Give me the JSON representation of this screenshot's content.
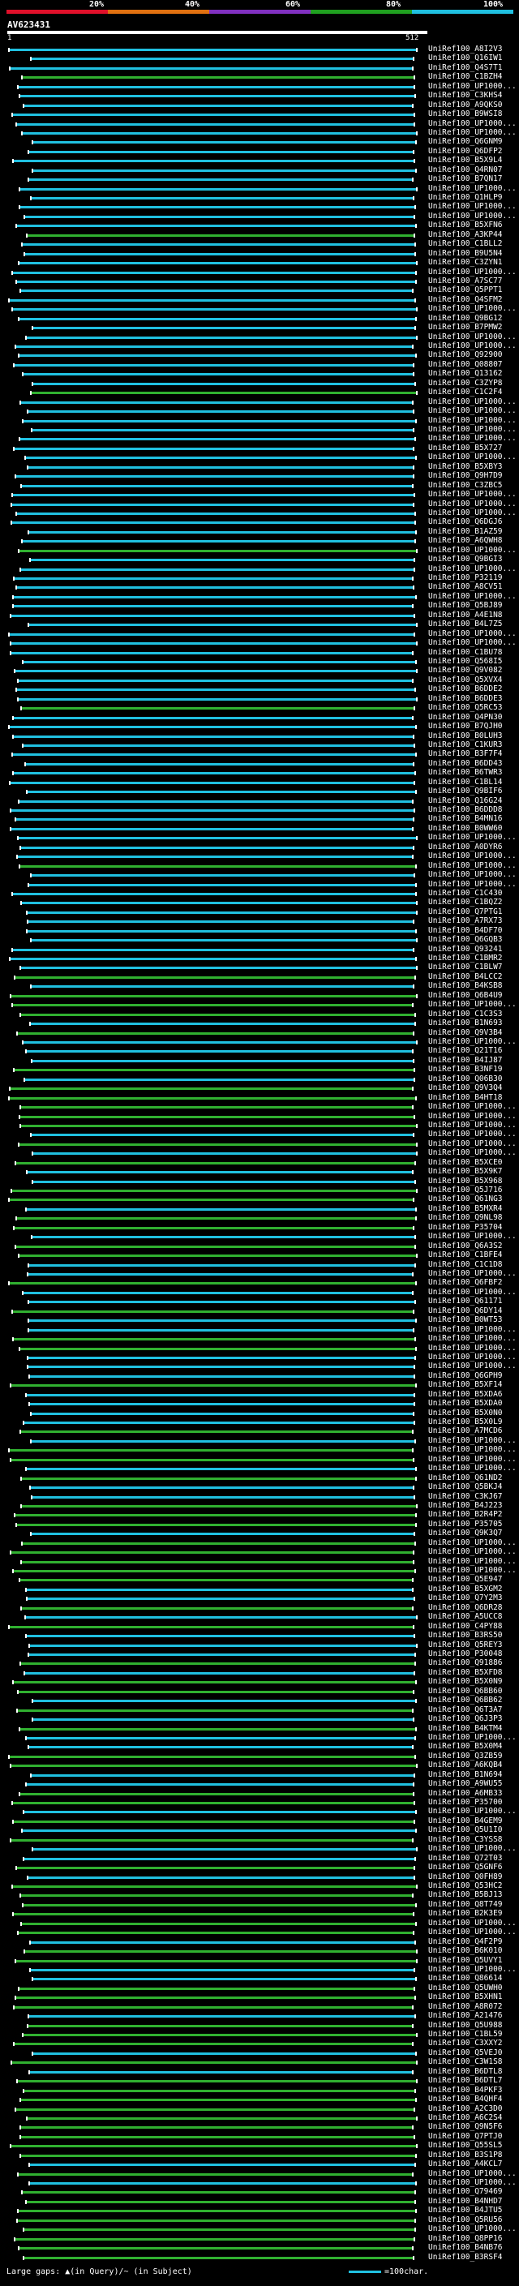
{
  "scale": {
    "labels": [
      "20%",
      "40%",
      "60%",
      "80%",
      "100%"
    ],
    "colors": [
      "#e0102a",
      "#e07010",
      "#8030c0",
      "#20a020",
      "#20c0e0"
    ]
  },
  "query": {
    "id": "AV623431",
    "start": "1",
    "end": "512"
  },
  "colors": {
    "identity_high": "#20c0e0",
    "identity_mid": "#30b030",
    "background": "#000000"
  },
  "hits": [
    "UniRef100_A8I2V3",
    "UniRef100_Q16IW1",
    "UniRef100_Q4S7T1",
    "UniRef100_C1BZH4",
    "UniRef100_UP1000...",
    "UniRef100_C3KHS4",
    "UniRef100_A9QKS0",
    "UniRef100_B9WSI8",
    "UniRef100_UP1000...",
    "UniRef100_UP1000...",
    "UniRef100_Q6GNM9",
    "UniRef100_Q6DFP2",
    "UniRef100_B5X9L4",
    "UniRef100_Q4RN07",
    "UniRef100_B7QN17",
    "UniRef100_UP1000...",
    "UniRef100_Q1HLP9",
    "UniRef100_UP1000...",
    "UniRef100_UP1000...",
    "UniRef100_B5XFN6",
    "UniRef100_A3KP44",
    "UniRef100_C1BLL2",
    "UniRef100_B9U5N4",
    "UniRef100_C3ZYN1",
    "UniRef100_UP1000...",
    "UniRef100_A7SC77",
    "UniRef100_Q5PPT1",
    "UniRef100_Q4SFM2",
    "UniRef100_UP1000...",
    "UniRef100_Q9BG12",
    "UniRef100_B7PMW2",
    "UniRef100_UP1000...",
    "UniRef100_UP1000...",
    "UniRef100_Q92900",
    "UniRef100_Q08807",
    "UniRef100_Q13162",
    "UniRef100_C3ZYP8",
    "UniRef100_C1C2F4",
    "UniRef100_UP1000...",
    "UniRef100_UP1000...",
    "UniRef100_UP1000...",
    "UniRef100_UP1000...",
    "UniRef100_UP1000...",
    "UniRef100_B5X727",
    "UniRef100_UP1000...",
    "UniRef100_B5XBY3",
    "UniRef100_Q9H7D9",
    "UniRef100_C3ZBC5",
    "UniRef100_UP1000...",
    "UniRef100_UP1000...",
    "UniRef100_UP1000...",
    "UniRef100_Q6DGJ6",
    "UniRef100_B1AZ59",
    "UniRef100_A6QWH8",
    "UniRef100_UP1000...",
    "UniRef100_Q9BGI3",
    "UniRef100_UP1000...",
    "UniRef100_P32119",
    "UniRef100_A8CV51",
    "UniRef100_UP1000...",
    "UniRef100_Q5BJ89",
    "UniRef100_A4E1N8",
    "UniRef100_B4L7Z5",
    "UniRef100_UP1000...",
    "UniRef100_UP1000...",
    "UniRef100_C1BU78",
    "UniRef100_Q568I5",
    "UniRef100_Q9V082",
    "UniRef100_Q5XVX4",
    "UniRef100_B6DDE2",
    "UniRef100_B6DDE3",
    "UniRef100_Q5RC53",
    "UniRef100_Q4PN30",
    "UniRef100_B7QJH0",
    "UniRef100_B0LUH3",
    "UniRef100_C1KUR3",
    "UniRef100_B3F7F4",
    "UniRef100_B6DD43",
    "UniRef100_B6TWR3",
    "UniRef100_C1BL14",
    "UniRef100_Q9BIF6",
    "UniRef100_Q16G24",
    "UniRef100_B6DDD8",
    "UniRef100_B4MN16",
    "UniRef100_B0WW60",
    "UniRef100_UP1000...",
    "UniRef100_A0DYR6",
    "UniRef100_UP1000...",
    "UniRef100_UP1000...",
    "UniRef100_UP1000...",
    "UniRef100_UP1000...",
    "UniRef100_C1C430",
    "UniRef100_C1BQZ2",
    "UniRef100_Q7PTG1",
    "UniRef100_A7RX73",
    "UniRef100_B4DF70",
    "UniRef100_Q6GQB3",
    "UniRef100_Q93241",
    "UniRef100_C1BMR2",
    "UniRef100_C1BLW7",
    "UniRef100_B4LCC2",
    "UniRef100_B4KSB8",
    "UniRef100_Q6B4U9",
    "UniRef100_UP1000...",
    "UniRef100_C1C3S3",
    "UniRef100_B1N693",
    "UniRef100_Q9V3B4",
    "UniRef100_UP1000...",
    "UniRef100_Q21T16",
    "UniRef100_B4IJ87",
    "UniRef100_B3NF19",
    "UniRef100_Q06B30",
    "UniRef100_Q9V3Q4",
    "UniRef100_B4HT18",
    "UniRef100_UP1000...",
    "UniRef100_UP1000...",
    "UniRef100_UP1000...",
    "UniRef100_UP1000...",
    "UniRef100_UP1000...",
    "UniRef100_UP1000...",
    "UniRef100_B5XCE0",
    "UniRef100_B5X9K7",
    "UniRef100_B5X968",
    "UniRef100_Q5J716",
    "UniRef100_Q61NG3",
    "UniRef100_B5MXR4",
    "UniRef100_Q9NL98",
    "UniRef100_P35704",
    "UniRef100_UP1000...",
    "UniRef100_Q6A3S2",
    "UniRef100_C1BFE4",
    "UniRef100_C1C1D8",
    "UniRef100_UP1000...",
    "UniRef100_Q6FBF2",
    "UniRef100_UP1000...",
    "UniRef100_Q61171",
    "UniRef100_Q6DY14",
    "UniRef100_B0WT53",
    "UniRef100_UP1000...",
    "UniRef100_UP1000...",
    "UniRef100_UP1000...",
    "UniRef100_UP1000...",
    "UniRef100_UP1000...",
    "UniRef100_Q6GPH9",
    "UniRef100_B5XF14",
    "UniRef100_B5XDA6",
    "UniRef100_B5XDA0",
    "UniRef100_B5X0N0",
    "UniRef100_B5X0L9",
    "UniRef100_A7MCD6",
    "UniRef100_UP1000...",
    "UniRef100_UP1000...",
    "UniRef100_UP1000...",
    "UniRef100_UP1000...",
    "UniRef100_Q61ND2",
    "UniRef100_Q5BKJ4",
    "UniRef100_C3KJ67",
    "UniRef100_B4J223",
    "UniRef100_B2R4P2",
    "UniRef100_P35705",
    "UniRef100_Q9K3Q7",
    "UniRef100_UP1000...",
    "UniRef100_UP1000...",
    "UniRef100_UP1000...",
    "UniRef100_UP1000...",
    "UniRef100_Q5E947",
    "UniRef100_B5XGM2",
    "UniRef100_Q7Y2M3",
    "UniRef100_Q6DR28",
    "UniRef100_A5UCC8",
    "UniRef100_C4PY88",
    "UniRef100_B3RS50",
    "UniRef100_Q5REY3",
    "UniRef100_P30048",
    "UniRef100_Q91886",
    "UniRef100_B5XFD8",
    "UniRef100_B5X0N9",
    "UniRef100_Q6BB60",
    "UniRef100_Q6BB62",
    "UniRef100_Q6T3A7",
    "UniRef100_Q6J3P3",
    "UniRef100_B4KTM4",
    "UniRef100_UP1000...",
    "UniRef100_B5X0M4",
    "UniRef100_Q3ZB59",
    "UniRef100_A6KQB4",
    "UniRef100_B1N694",
    "UniRef100_A9WU55",
    "UniRef100_A6MB33",
    "UniRef100_P35700",
    "UniRef100_UP1000...",
    "UniRef100_B4GEM9",
    "UniRef100_Q5U1I0",
    "UniRef100_C3YSS8",
    "UniRef100_UP1000...",
    "UniRef100_Q72T03",
    "UniRef100_Q5GNF6",
    "UniRef100_Q0FH89",
    "UniRef100_Q53HC2",
    "UniRef100_B5BJ13",
    "UniRef100_Q8T749",
    "UniRef100_B2K3E9",
    "UniRef100_UP1000...",
    "UniRef100_UP1000...",
    "UniRef100_Q4F2P9",
    "UniRef100_B6K010",
    "UniRef100_Q5UVY1",
    "UniRef100_UP1000...",
    "UniRef100_Q86614",
    "UniRef100_Q5UWH0",
    "UniRef100_B5XHN1",
    "UniRef100_A8R072",
    "UniRef100_A21476",
    "UniRef100_Q5U988",
    "UniRef100_C1BL59",
    "UniRef100_C3XXY2",
    "UniRef100_Q5VEJ0",
    "UniRef100_C3W1S8",
    "UniRef100_B6DTL8",
    "UniRef100_B6DTL7",
    "UniRef100_B4PKF3",
    "UniRef100_B4QHF4",
    "UniRef100_A2C3D0",
    "UniRef100_A6C2S4",
    "UniRef100_Q9N5F6",
    "UniRef100_Q7PTJ0",
    "UniRef100_Q55SL5",
    "UniRef100_B3S1P8",
    "UniRef100_A4KCL7",
    "UniRef100_UP1000...",
    "UniRef100_UP1000...",
    "UniRef100_Q79469",
    "UniRef100_B4NHD7",
    "UniRef100_B4JTU5",
    "UniRef100_Q5RU56",
    "UniRef100_UP1000...",
    "UniRef100_Q8PP16",
    "UniRef100_B4NB76",
    "UniRef100_B3RSF4"
  ],
  "footer": {
    "text": "Large gaps: ▲(in Query)/~ (in Subject)",
    "legend": "=100char."
  }
}
